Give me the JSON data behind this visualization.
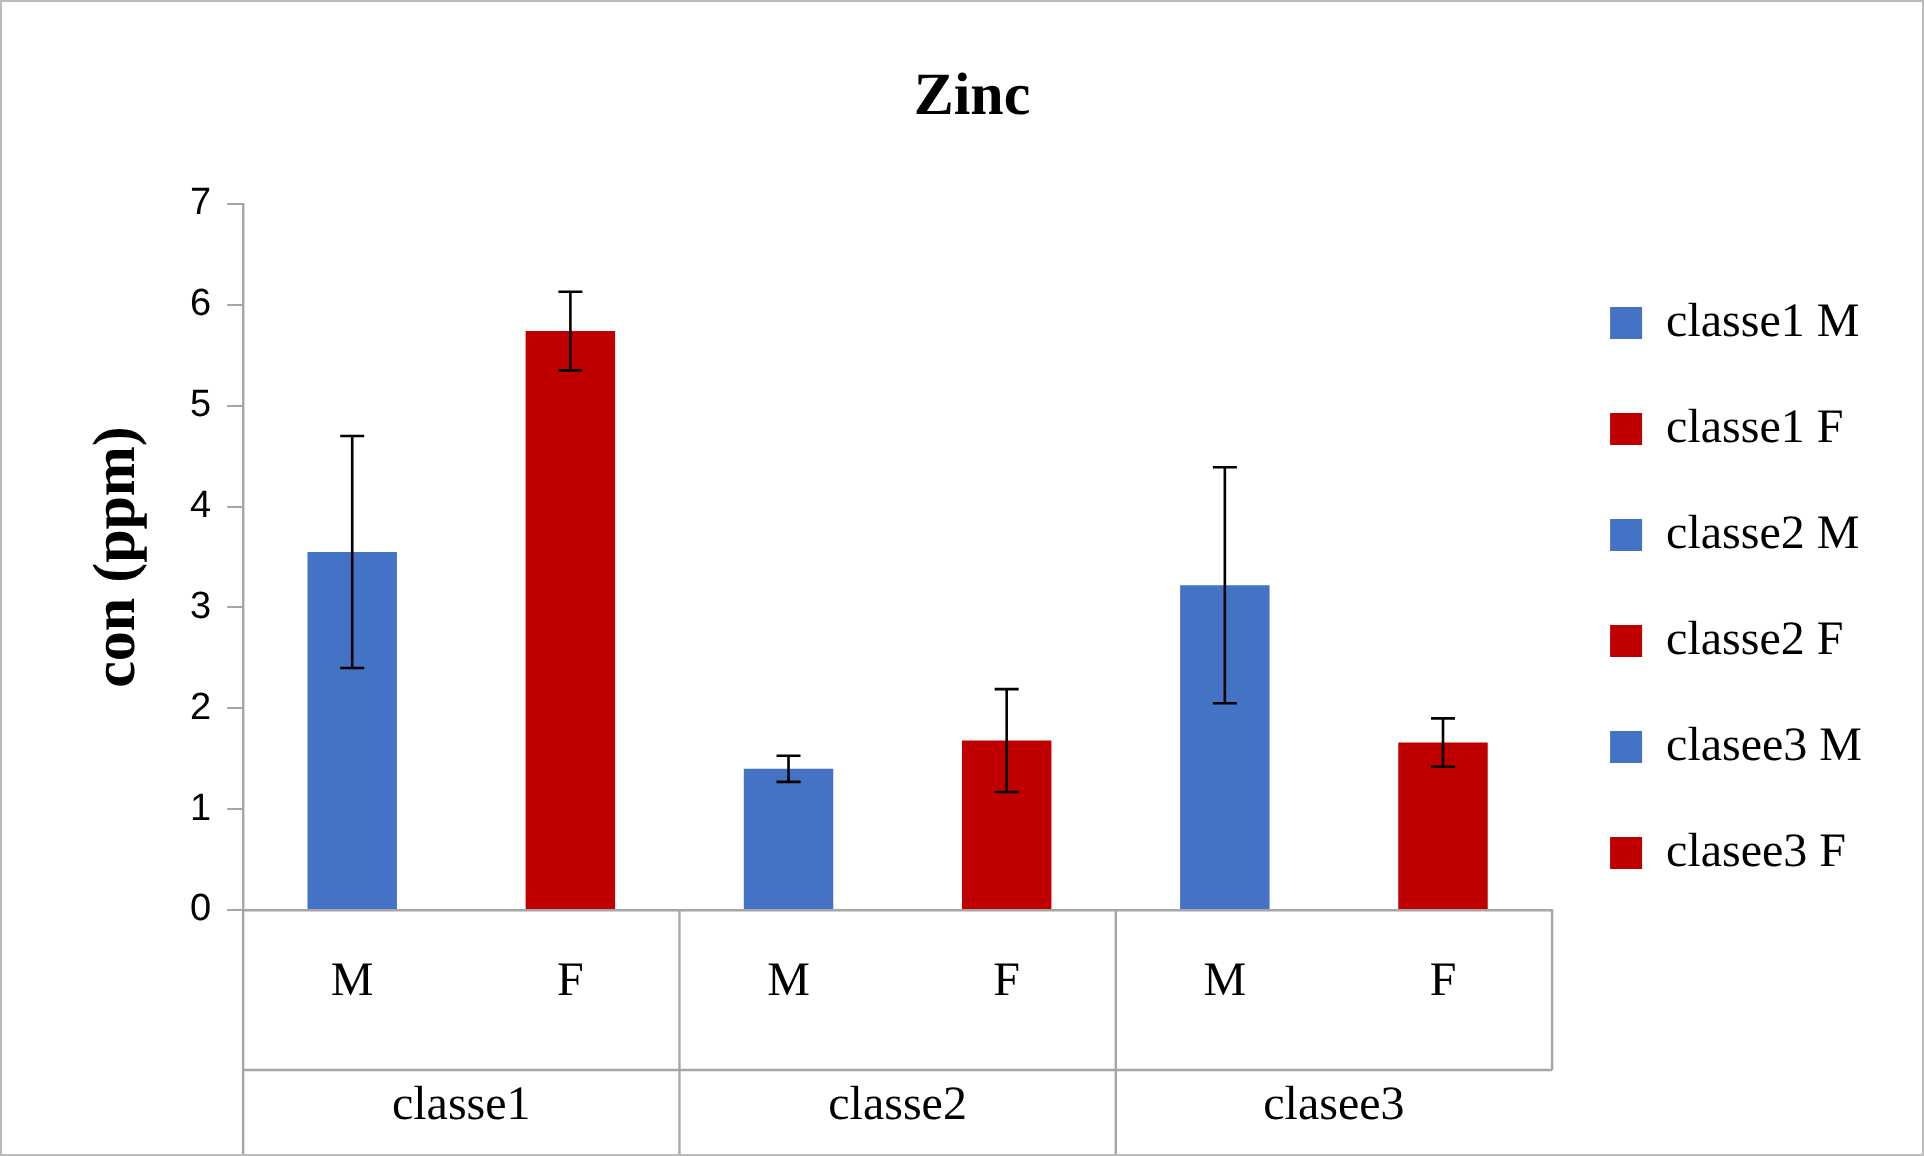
{
  "chart_data": {
    "type": "bar",
    "title": "Zinc",
    "ylabel": "con (ppm)",
    "categories": [
      "M",
      "F",
      "M",
      "F",
      "M",
      "F"
    ],
    "series": [
      {
        "name": "classe1 M",
        "color": "#4472c4",
        "values": [
          3.55,
          null,
          null,
          null,
          null,
          null
        ],
        "errors": [
          1.15,
          null,
          null,
          null,
          null,
          null
        ]
      },
      {
        "name": "classe1 F",
        "color": "#c00000",
        "values": [
          null,
          5.74,
          null,
          null,
          null,
          null
        ],
        "errors": [
          null,
          0.39,
          null,
          null,
          null,
          null
        ]
      },
      {
        "name": "classe2 M",
        "color": "#4472c4",
        "values": [
          null,
          null,
          1.4,
          null,
          null,
          null
        ],
        "errors": [
          null,
          null,
          0.13,
          null,
          null,
          null
        ]
      },
      {
        "name": "classe2 F",
        "color": "#c00000",
        "values": [
          null,
          null,
          null,
          1.68,
          null,
          null
        ],
        "errors": [
          null,
          null,
          null,
          0.51,
          null,
          null
        ]
      },
      {
        "name": "clasee3 M",
        "color": "#4472c4",
        "values": [
          null,
          null,
          null,
          null,
          3.22,
          null
        ],
        "errors": [
          null,
          null,
          null,
          null,
          1.17,
          null
        ]
      },
      {
        "name": "clasee3 F",
        "color": "#c00000",
        "values": [
          null,
          null,
          null,
          null,
          null,
          1.66
        ],
        "errors": [
          null,
          null,
          null,
          null,
          null,
          0.24
        ]
      }
    ],
    "annotations": [
      "classe1",
      "classe2",
      "clasee3"
    ],
    "ylim": [
      0,
      7
    ],
    "yticks": [
      0,
      1,
      2,
      3,
      4,
      5,
      6,
      7
    ],
    "grid": false,
    "legend": "right"
  }
}
